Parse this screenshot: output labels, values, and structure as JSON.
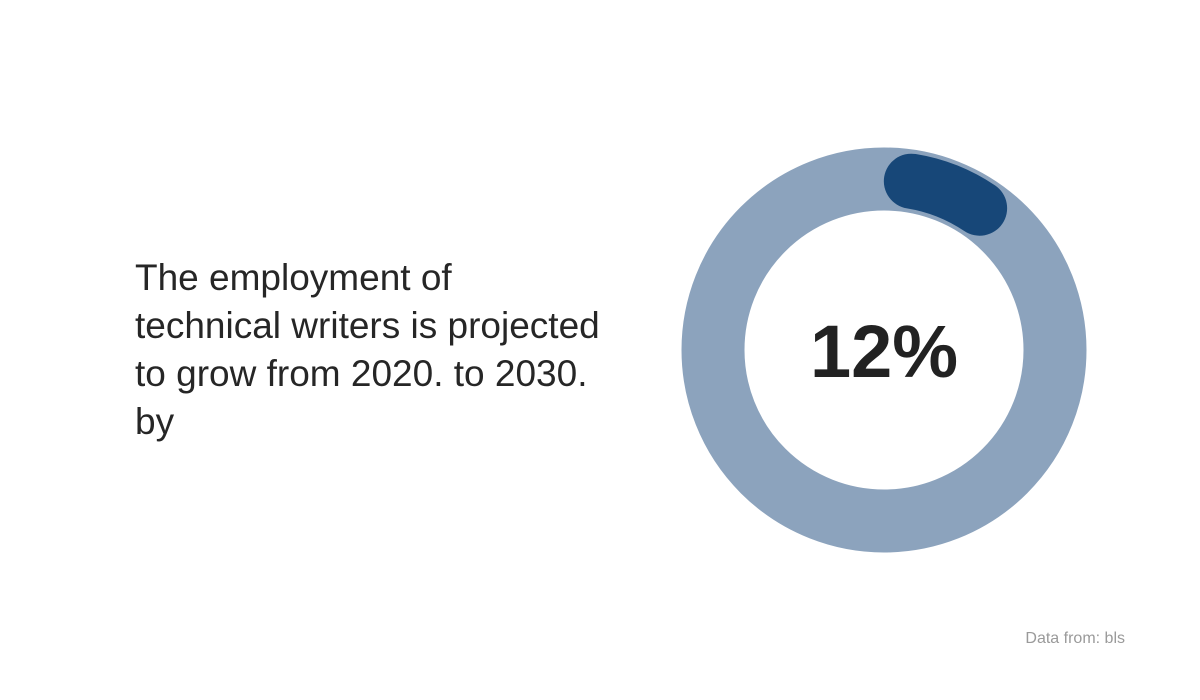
{
  "headline": "The employment of technical writers is projected to grow from 2020. to 2030. by",
  "source": "Data from: bls",
  "chart_data": {
    "type": "pie",
    "variant": "donut",
    "value": 12,
    "max": 100,
    "center_label": "12%",
    "colors": {
      "track": "#8ca3bd",
      "value": "#174778",
      "label": "#222222"
    }
  }
}
